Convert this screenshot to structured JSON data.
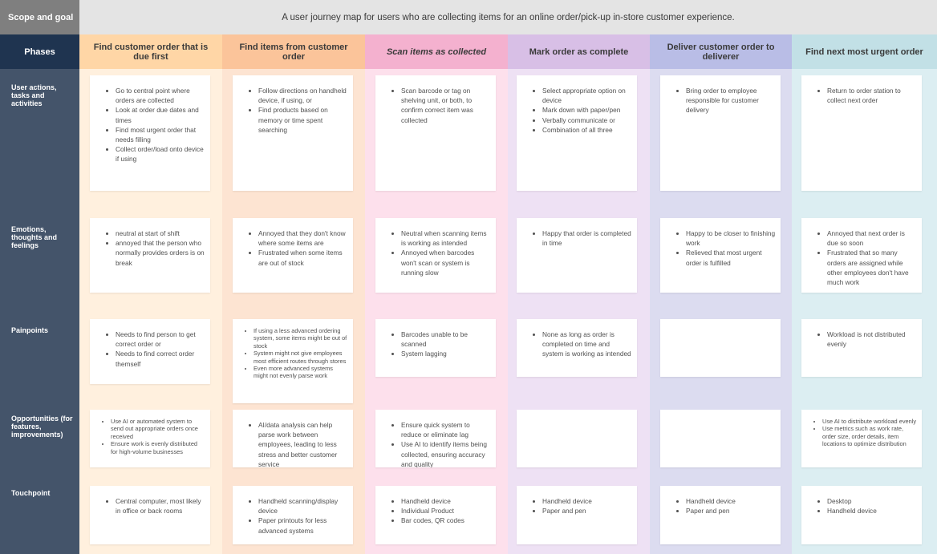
{
  "scope_label": "Scope and goal",
  "scope_text": "A user journey map for users who are collecting items for an online order/pick-up in-store customer experience.",
  "phases_label": "Phases",
  "row_labels": [
    "User actions, tasks and activities",
    "Emotions, thoughts and feelings",
    "Painpoints",
    "Opportunities (for features, improvements)",
    "Touchpoint"
  ],
  "columns": [
    {
      "title": "Find customer order that is due first",
      "head_color": "#ffd6a6",
      "bg_color": "#fff0de",
      "cells": [
        [
          "Go to central point where orders are collected",
          "Look at order due dates and times",
          "Find most urgent order that needs filling",
          "Collect order/load onto device if using"
        ],
        [
          "neutral at start of shift",
          "annoyed that the person who normally provides orders is on break"
        ],
        [
          "Needs to find person to get correct order or",
          "Needs to find correct order themself"
        ],
        [
          "Use AI or automated system to send out appropriate orders once received",
          "Ensure work is evenly distributed for high-volume businesses"
        ],
        [
          "Central computer, most likely in office or back rooms"
        ]
      ]
    },
    {
      "title": "Find items from customer order",
      "head_color": "#fbc49a",
      "bg_color": "#fde4d2",
      "cells": [
        [
          "Follow directions on handheld device, if using, or",
          "Find products based on memory or time spent searching"
        ],
        [
          "Annoyed that they don't know where some items are",
          "Frustrated when some items are out of stock"
        ],
        [
          "If using a less advanced ordering system, some items might be out of stock",
          "System might not give employees most efficient routes through stores",
          "Even more advanced systems might not evenly parse work"
        ],
        [
          "AI/data analysis can help parse work between employees, leading to less stress and better customer service"
        ],
        [
          "Handheld scanning/display device",
          "Paper printouts for less advanced systems"
        ]
      ]
    },
    {
      "title": "Scan items as collected",
      "head_color": "#f4b1cf",
      "bg_color": "#fde0ec",
      "cells": [
        [
          "Scan barcode or tag on shelving unit, or both, to confirm correct item was collected"
        ],
        [
          "Neutral when scanning items is working as intended",
          "Annoyed when barcodes won't scan or system is running slow"
        ],
        [
          "Barcodes unable to be scanned",
          "System lagging"
        ],
        [
          "Ensure quick system to reduce or eliminate lag",
          "Use AI to identify items being collected, ensuring accuracy and quality"
        ],
        [
          "Handheld device",
          "Individual Product",
          "Bar codes, QR codes"
        ]
      ]
    },
    {
      "title": "Mark order as complete",
      "head_color": "#d8bfe6",
      "bg_color": "#eee1f4",
      "cells": [
        [
          "Select appropriate option on device",
          "Mark down with paper/pen",
          "Verbally communicate or",
          "Combination of all three"
        ],
        [
          "Happy that order is completed in time"
        ],
        [
          "None as long as order is completed on time and system is working as intended"
        ],
        [],
        [
          "Handheld device",
          "Paper and pen"
        ]
      ]
    },
    {
      "title": "Deliver customer order to deliverer",
      "head_color": "#b9bde6",
      "bg_color": "#dcdcf0",
      "cells": [
        [
          "Bring order to employee responsible for customer delivery"
        ],
        [
          "Happy to be closer to finishing work",
          "Relieved that most urgent order is fulfilled"
        ],
        [],
        [],
        [
          "Handheld device",
          "Paper and pen"
        ]
      ]
    },
    {
      "title": "Find next most urgent order",
      "head_color": "#c2e0e6",
      "bg_color": "#dceef2",
      "cells": [
        [
          "Return to order station to collect next order"
        ],
        [
          "Annoyed that next order is due so soon",
          "Frustrated that so many orders are assigned while other employees don't have much work"
        ],
        [
          "Workload is not distributed evenly"
        ],
        [
          "Use AI to distribute workload evenly",
          "Use metrics such as work rate, order size, order details, item locations to optimize distribution"
        ],
        [
          "Desktop",
          "Handheld device"
        ]
      ]
    }
  ]
}
